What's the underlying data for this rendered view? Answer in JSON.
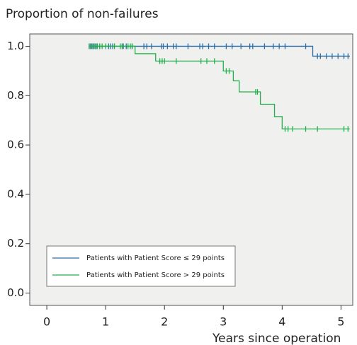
{
  "chart_data": {
    "type": "step",
    "y_label": "Proportion of non-failures",
    "x_label": "Years since operation",
    "xlim": [
      -0.29,
      5.2
    ],
    "ylim": [
      -0.05,
      1.05
    ],
    "xticks": [
      0,
      1,
      2,
      3,
      4,
      5
    ],
    "yticks": [
      {
        "value": 0,
        "label": "0.0"
      },
      {
        "value": 0.2,
        "label": "0.2"
      },
      {
        "value": 0.4,
        "label": "0.4"
      },
      {
        "value": 0.6,
        "label": "0.6"
      },
      {
        "value": 0.8,
        "label": "0.8"
      },
      {
        "value": 1,
        "label": "1.0"
      }
    ],
    "legend": "lower left",
    "series": [
      {
        "name": "Patients with Patient Score ≤ 29 points",
        "color": "#2c6fa8",
        "x": [
          0.72,
          4.52,
          5.15
        ],
        "values": [
          1.0,
          0.96,
          0.96
        ],
        "censor_x": [
          0.72,
          0.76,
          0.8,
          0.84,
          0.9,
          1.05,
          1.08,
          1.12,
          1.3,
          1.35,
          1.45,
          1.65,
          1.7,
          1.78,
          1.95,
          1.98,
          2.05,
          2.15,
          2.2,
          2.4,
          2.6,
          2.65,
          2.75,
          2.85,
          3.05,
          3.15,
          3.3,
          3.45,
          3.5,
          3.7,
          3.85,
          3.95,
          4.05,
          4.4,
          4.6,
          4.65,
          4.75,
          4.85,
          4.95,
          5.05,
          5.12
        ],
        "censor_values": [
          1,
          1,
          1,
          1,
          1,
          1,
          1,
          1,
          1,
          1,
          1,
          1,
          1,
          1,
          1,
          1,
          1,
          1,
          1,
          1,
          1,
          1,
          1,
          1,
          1,
          1,
          1,
          1,
          1,
          1,
          1,
          1,
          1,
          1,
          0.96,
          0.96,
          0.96,
          0.96,
          0.96,
          0.96,
          0.96
        ]
      },
      {
        "name": "Patients with Patient Score > 29 points",
        "color": "#22b04b",
        "x": [
          0.72,
          1.5,
          1.85,
          3.0,
          3.17,
          3.27,
          3.63,
          3.87,
          4.0,
          5.15
        ],
        "values": [
          1.0,
          0.97,
          0.94,
          0.9,
          0.86,
          0.815,
          0.765,
          0.715,
          0.665,
          0.665
        ],
        "censor_x": [
          0.74,
          0.78,
          0.82,
          0.86,
          0.9,
          0.94,
          1.0,
          1.15,
          1.25,
          1.28,
          1.38,
          1.42,
          1.45,
          1.92,
          1.96,
          2.0,
          2.2,
          2.62,
          2.72,
          2.85,
          3.05,
          3.1,
          3.55,
          3.58,
          4.05,
          4.1,
          4.18,
          4.4,
          4.6,
          5.05,
          5.12
        ],
        "censor_values": [
          1,
          1,
          1,
          1,
          1,
          1,
          1,
          1,
          1,
          1,
          1,
          1,
          1,
          0.94,
          0.94,
          0.94,
          0.94,
          0.94,
          0.94,
          0.94,
          0.9,
          0.9,
          0.815,
          0.815,
          0.665,
          0.665,
          0.665,
          0.665,
          0.665,
          0.665,
          0.665
        ]
      }
    ]
  }
}
